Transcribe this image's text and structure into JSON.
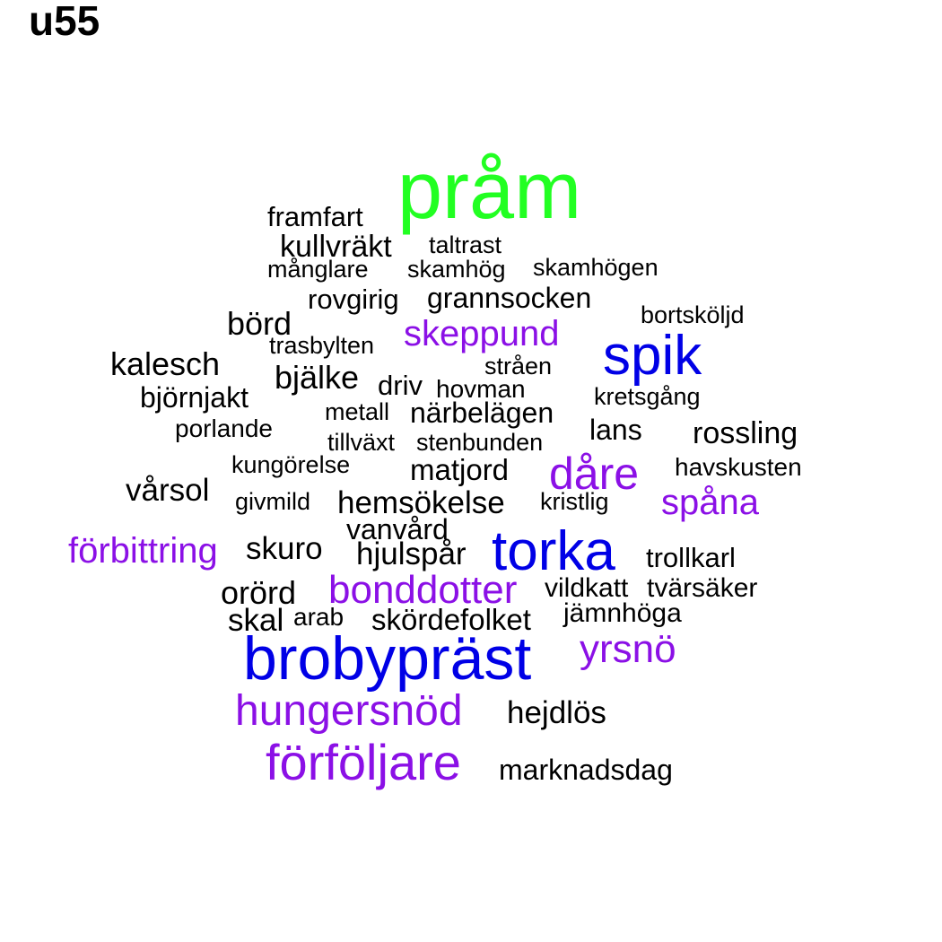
{
  "title": "u55",
  "colors": {
    "green": "#22ff22",
    "blue": "#0000e6",
    "purple": "#8b10e6",
    "black": "#000000"
  },
  "words": [
    {
      "text": "pråm",
      "color": "green"
    },
    {
      "text": "framfart",
      "color": "black"
    },
    {
      "text": "kullvräkt",
      "color": "black"
    },
    {
      "text": "taltrast",
      "color": "black"
    },
    {
      "text": "månglare",
      "color": "black"
    },
    {
      "text": "skamhög",
      "color": "black"
    },
    {
      "text": "skamhögen",
      "color": "black"
    },
    {
      "text": "rovgirig",
      "color": "black"
    },
    {
      "text": "grannsocken",
      "color": "black"
    },
    {
      "text": "bortsköljd",
      "color": "black"
    },
    {
      "text": "börd",
      "color": "black"
    },
    {
      "text": "skeppund",
      "color": "purple"
    },
    {
      "text": "trasbylten",
      "color": "black"
    },
    {
      "text": "spik",
      "color": "blue"
    },
    {
      "text": "kalesch",
      "color": "black"
    },
    {
      "text": "stråen",
      "color": "black"
    },
    {
      "text": "bjälke",
      "color": "black"
    },
    {
      "text": "driv",
      "color": "black"
    },
    {
      "text": "hovman",
      "color": "black"
    },
    {
      "text": "björnjakt",
      "color": "black"
    },
    {
      "text": "kretsgång",
      "color": "black"
    },
    {
      "text": "metall",
      "color": "black"
    },
    {
      "text": "närbelägen",
      "color": "black"
    },
    {
      "text": "porlande",
      "color": "black"
    },
    {
      "text": "lans",
      "color": "black"
    },
    {
      "text": "rossling",
      "color": "black"
    },
    {
      "text": "tillväxt",
      "color": "black"
    },
    {
      "text": "stenbunden",
      "color": "black"
    },
    {
      "text": "kungörelse",
      "color": "black"
    },
    {
      "text": "matjord",
      "color": "black"
    },
    {
      "text": "dåre",
      "color": "purple"
    },
    {
      "text": "havskusten",
      "color": "black"
    },
    {
      "text": "vårsol",
      "color": "black"
    },
    {
      "text": "givmild",
      "color": "black"
    },
    {
      "text": "hemsökelse",
      "color": "black"
    },
    {
      "text": "kristlig",
      "color": "black"
    },
    {
      "text": "spåna",
      "color": "purple"
    },
    {
      "text": "vanvård",
      "color": "black"
    },
    {
      "text": "förbittring",
      "color": "purple"
    },
    {
      "text": "skuro",
      "color": "black"
    },
    {
      "text": "hjulspår",
      "color": "black"
    },
    {
      "text": "torka",
      "color": "blue"
    },
    {
      "text": "trollkarl",
      "color": "black"
    },
    {
      "text": "orörd",
      "color": "black"
    },
    {
      "text": "bonddotter",
      "color": "purple"
    },
    {
      "text": "vildkatt",
      "color": "black"
    },
    {
      "text": "tvärsäker",
      "color": "black"
    },
    {
      "text": "skal",
      "color": "black"
    },
    {
      "text": "arab",
      "color": "black"
    },
    {
      "text": "skördefolket",
      "color": "black"
    },
    {
      "text": "jämnhöga",
      "color": "black"
    },
    {
      "text": "brobypräst",
      "color": "blue"
    },
    {
      "text": "yrsnö",
      "color": "purple"
    },
    {
      "text": "hungersnöd",
      "color": "purple"
    },
    {
      "text": "hejdlös",
      "color": "black"
    },
    {
      "text": "förföljare",
      "color": "purple"
    },
    {
      "text": "marknadsdag",
      "color": "black"
    }
  ]
}
